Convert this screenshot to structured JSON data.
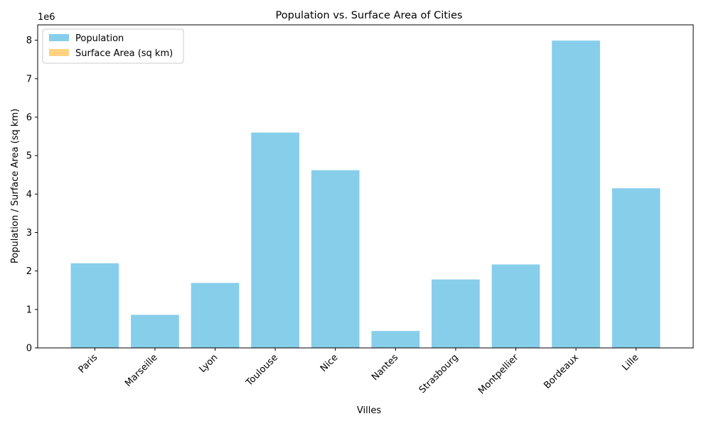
{
  "chart_data": {
    "type": "bar",
    "title": "Population vs. Surface Area of Cities",
    "xlabel": "Villes",
    "ylabel": "Population / Surface Area (sq km)",
    "y_offset_text": "1e6",
    "categories": [
      "Paris",
      "Marseille",
      "Lyon",
      "Toulouse",
      "Nice",
      "Nantes",
      "Strasbourg",
      "Montpellier",
      "Bordeaux",
      "Lille"
    ],
    "series": [
      {
        "name": "Population",
        "color": "#87ceeb",
        "values": [
          2200000,
          860000,
          1690000,
          5600000,
          4620000,
          440000,
          1780000,
          2170000,
          7990000,
          4150000
        ]
      },
      {
        "name": "Surface Area (sq km)",
        "color": "#ffd280",
        "values": [
          105,
          241,
          48,
          118,
          72,
          65,
          78,
          57,
          49,
          35
        ]
      }
    ],
    "ylim": [
      0,
      8400000
    ],
    "yticks": [
      0,
      1,
      2,
      3,
      4,
      5,
      6,
      7,
      8
    ],
    "y_tick_scale": 1000000,
    "legend": "top-left",
    "grid": false
  }
}
